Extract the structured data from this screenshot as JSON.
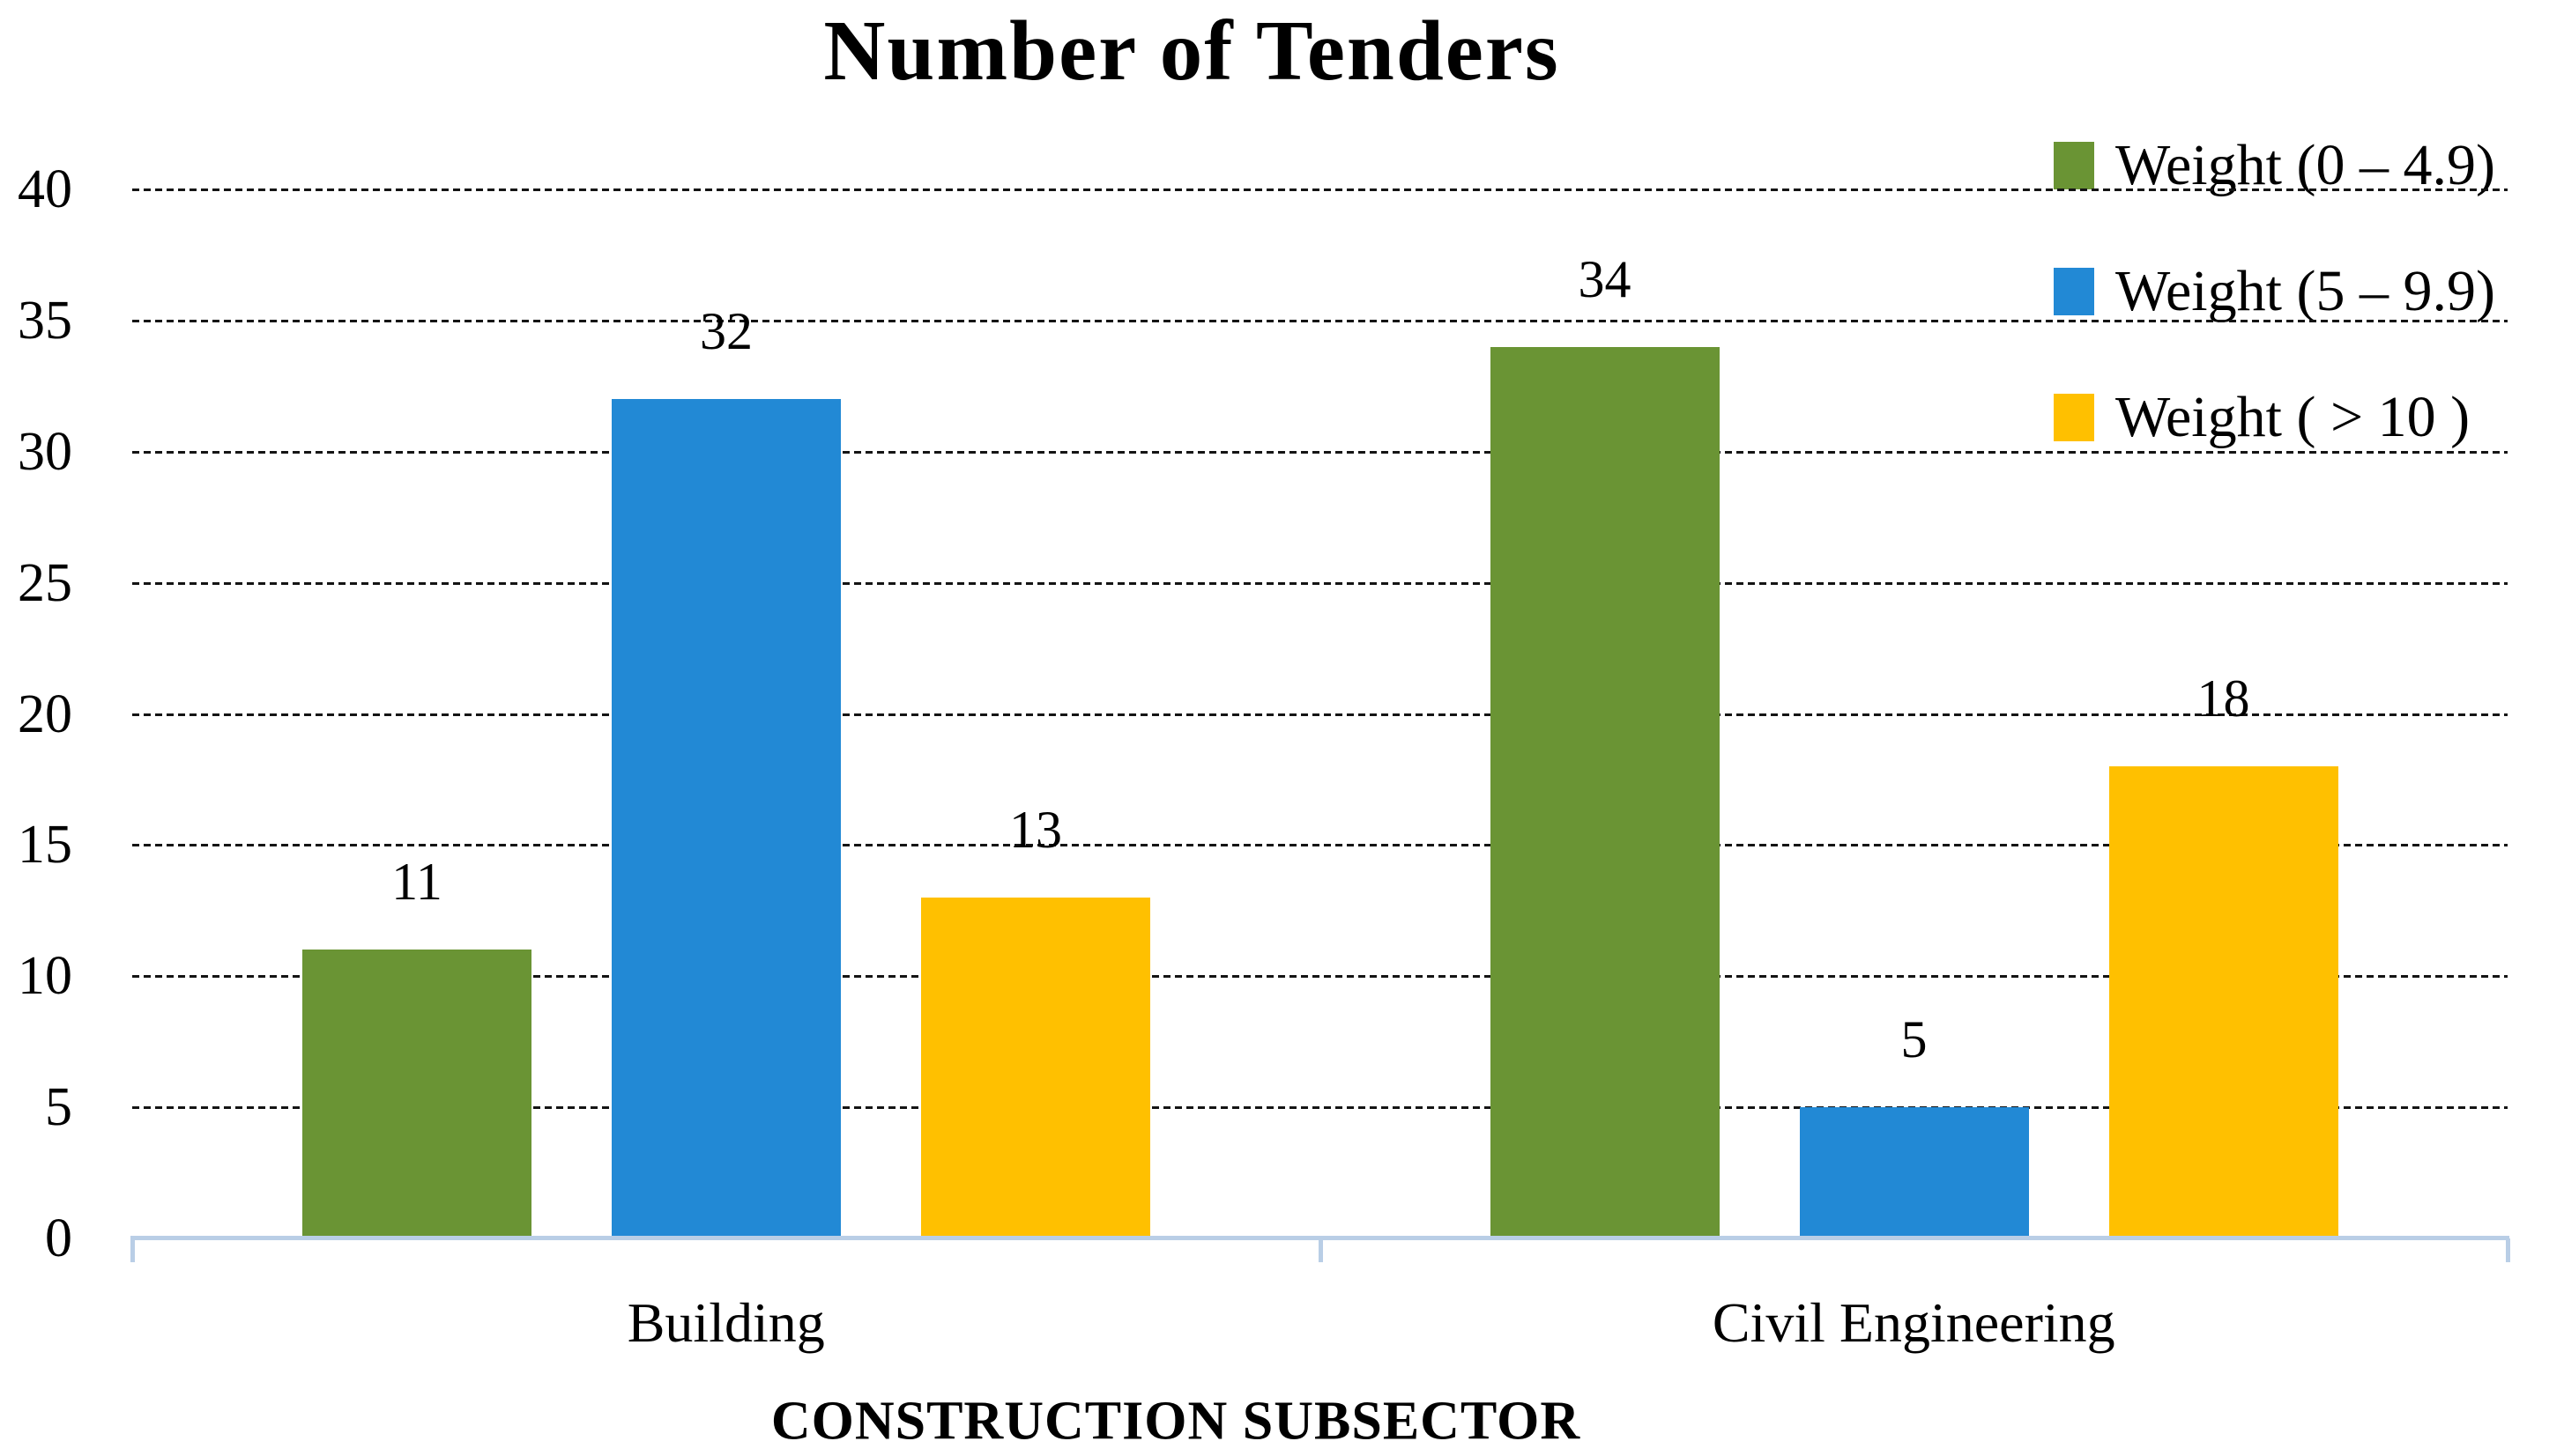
{
  "chart_data": {
    "type": "bar",
    "title": "Number of Tenders",
    "categories": [
      "Building",
      "Civil Engineering"
    ],
    "series": [
      {
        "name": "Weight (0 – 4.9)",
        "color": "#6A9434",
        "values": [
          11,
          34
        ]
      },
      {
        "name": "Weight (5 – 9.9)",
        "color": "#2289D5",
        "values": [
          32,
          5
        ]
      },
      {
        "name": "Weight ( > 10 )",
        "color": "#FFC000",
        "values": [
          13,
          18
        ]
      }
    ],
    "xlabel": "CONSTRUCTION SUBSECTOR",
    "ylabel": "",
    "ylim": [
      0,
      40
    ],
    "ytick_step": 5,
    "yticks": [
      0,
      5,
      10,
      15,
      20,
      25,
      30,
      35,
      40
    ],
    "grid": "horizontal, fine dashed black lines",
    "legend_position": "top-right",
    "data_labels": true,
    "colors": {
      "axis_line": "#B9CEE6",
      "gridline": "#141414",
      "text": "#000000",
      "background": "#FFFFFF"
    }
  }
}
